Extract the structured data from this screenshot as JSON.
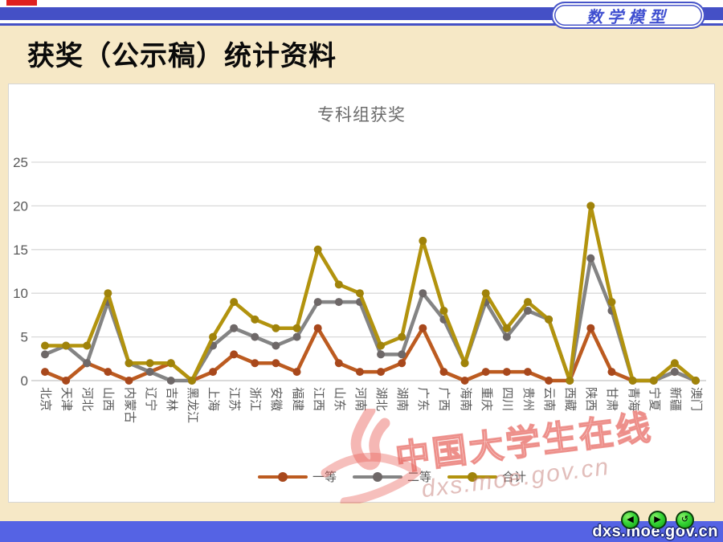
{
  "page": {
    "brand_badge": "数学模型",
    "slide_title": "获奖（公示稿）统计资料",
    "footer_url": "dxs.moe.gov.cn",
    "nav": {
      "back": "◀",
      "forward": "▶",
      "return": "↺"
    }
  },
  "watermark": {
    "text": "中国大学生在线",
    "url": "dxs.moe.gov.cn"
  },
  "colors": {
    "top_bar": "#4450c6",
    "bottom_bar": "#5563e4",
    "badge_blue": "#4754c8",
    "background": "#f6e8c6",
    "gridline": "#d9d9d9",
    "axis_text": "#595959",
    "series_first": "#bc5b20",
    "series_second": "#848484",
    "series_total": "#b2930e"
  },
  "chart_data": {
    "type": "line",
    "title": "专科组获奖",
    "xlabel": "",
    "ylabel": "",
    "ylim": [
      0,
      25
    ],
    "yticks": [
      0,
      5,
      10,
      15,
      20,
      25
    ],
    "grid": true,
    "legend_position": "bottom",
    "categories": [
      "北京",
      "天津",
      "河北",
      "山西",
      "内蒙古",
      "辽宁",
      "吉林",
      "黑龙江",
      "上海",
      "江苏",
      "浙江",
      "安徽",
      "福建",
      "江西",
      "山东",
      "河南",
      "湖北",
      "湖南",
      "广东",
      "广西",
      "海南",
      "重庆",
      "四川",
      "贵州",
      "云南",
      "西藏",
      "陕西",
      "甘肃",
      "青海",
      "宁夏",
      "新疆",
      "澳门"
    ],
    "series": [
      {
        "name": "一等",
        "color": "#bc5b20",
        "marker": "#a8481c",
        "values": [
          1,
          0,
          2,
          1,
          0,
          1,
          2,
          0,
          1,
          3,
          2,
          2,
          1,
          6,
          2,
          1,
          1,
          2,
          6,
          1,
          0,
          1,
          1,
          1,
          0,
          0,
          6,
          1,
          0,
          0,
          1,
          0
        ]
      },
      {
        "name": "二等",
        "color": "#848484",
        "marker": "#6e6868",
        "values": [
          3,
          4,
          2,
          9,
          2,
          1,
          0,
          0,
          4,
          6,
          5,
          4,
          5,
          9,
          9,
          9,
          3,
          3,
          10,
          7,
          2,
          9,
          5,
          8,
          7,
          0,
          14,
          8,
          0,
          0,
          1,
          0
        ]
      },
      {
        "name": "合计",
        "color": "#b2930e",
        "marker": "#a0830a",
        "values": [
          4,
          4,
          4,
          10,
          2,
          2,
          2,
          0,
          5,
          9,
          7,
          6,
          6,
          15,
          11,
          10,
          4,
          5,
          16,
          8,
          2,
          10,
          6,
          9,
          7,
          0,
          20,
          9,
          0,
          0,
          2,
          0
        ]
      }
    ]
  }
}
